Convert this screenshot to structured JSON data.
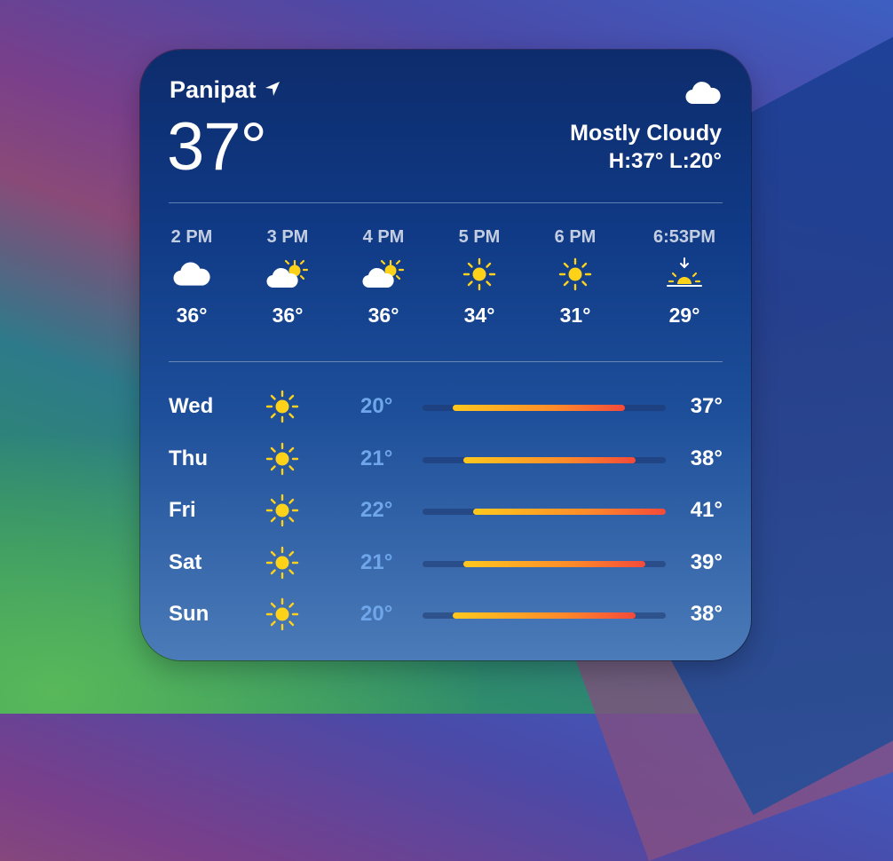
{
  "location": {
    "city": "Panipat",
    "icon": "location-arrow-icon"
  },
  "current": {
    "temperature": "37°",
    "condition": "Mostly Cloudy",
    "condition_icon": "cloud-icon",
    "hilo": "H:37° L:20°"
  },
  "hourly": [
    {
      "time": "2 PM",
      "icon": "cloud-icon",
      "temp": "36°"
    },
    {
      "time": "3 PM",
      "icon": "partly-sunny-icon",
      "temp": "36°"
    },
    {
      "time": "4 PM",
      "icon": "partly-sunny-icon",
      "temp": "36°"
    },
    {
      "time": "5 PM",
      "icon": "sun-icon",
      "temp": "34°"
    },
    {
      "time": "6 PM",
      "icon": "sun-icon",
      "temp": "31°"
    },
    {
      "time": "6:53PM",
      "icon": "sunset-icon",
      "temp": "29°"
    }
  ],
  "daily": [
    {
      "day": "Wed",
      "icon": "sun-icon",
      "low": "20°",
      "high": "37°",
      "low_value": 20,
      "high_value": 37
    },
    {
      "day": "Thu",
      "icon": "sun-icon",
      "low": "21°",
      "high": "38°",
      "low_value": 21,
      "high_value": 38
    },
    {
      "day": "Fri",
      "icon": "sun-icon",
      "low": "22°",
      "high": "41°",
      "low_value": 22,
      "high_value": 41
    },
    {
      "day": "Sat",
      "icon": "sun-icon",
      "low": "21°",
      "high": "39°",
      "low_value": 21,
      "high_value": 39
    },
    {
      "day": "Sun",
      "icon": "sun-icon",
      "low": "20°",
      "high": "38°",
      "low_value": 20,
      "high_value": 38
    }
  ],
  "colors": {
    "range_start": "#ffc81e",
    "range_end": "#f44a3a",
    "low_temp_text": "#6fa6ea"
  }
}
